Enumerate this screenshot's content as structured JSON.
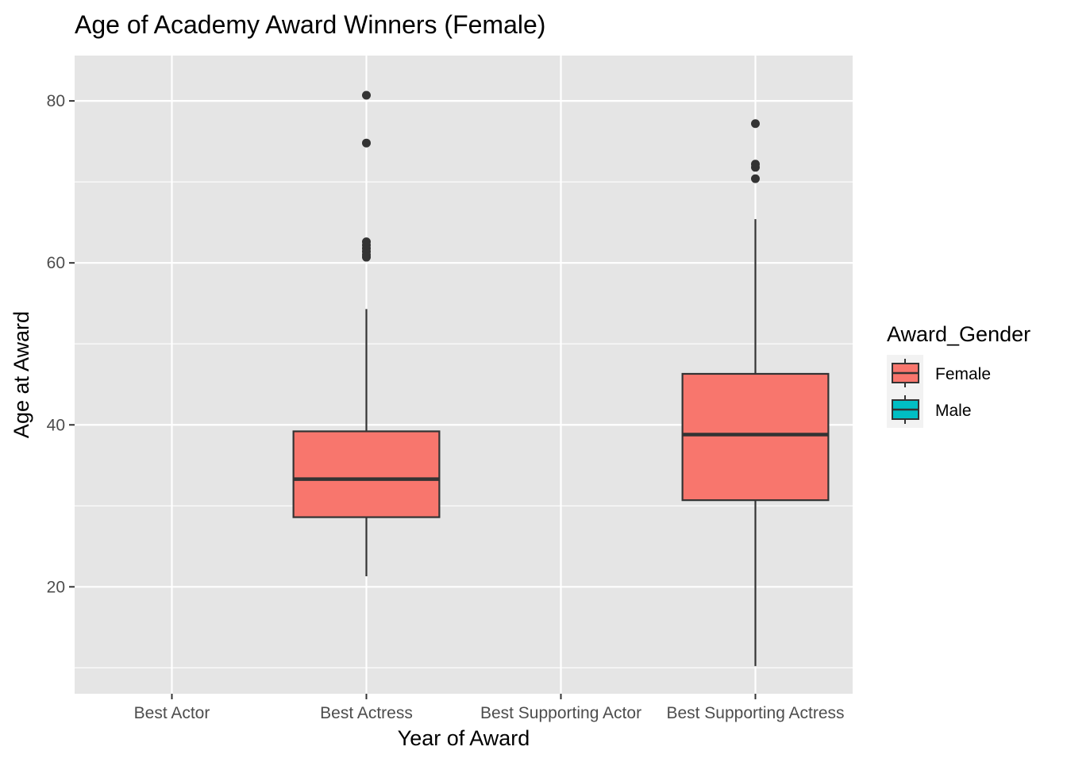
{
  "chart_data": {
    "type": "boxplot",
    "title": "Age of Academy Award Winners (Female)",
    "xlabel": "Year of Award",
    "ylabel": "Age at Award",
    "categories": [
      "Best Actor",
      "Best Actress",
      "Best Supporting Actor",
      "Best Supporting Actress"
    ],
    "ylim": [
      6.8,
      85.6
    ],
    "yticks": [
      20,
      40,
      60,
      80
    ],
    "grid": true,
    "legend": {
      "title": "Award_Gender",
      "position": "right",
      "entries": [
        {
          "label": "Female",
          "color": "#F8766D"
        },
        {
          "label": "Male",
          "color": "#00BFC4"
        }
      ]
    },
    "series": [
      {
        "name": "Female",
        "color": "#F8766D",
        "boxes": [
          {
            "category": "Best Actress",
            "lower_whisker": 21.3,
            "q1": 28.6,
            "median": 33.3,
            "q3": 39.2,
            "upper_whisker": 54.3,
            "outliers": [
              60.7,
              61.0,
              61.4,
              61.8,
              62.2,
              62.6,
              74.8,
              80.7
            ]
          },
          {
            "category": "Best Supporting Actress",
            "lower_whisker": 10.2,
            "q1": 30.7,
            "median": 38.8,
            "q3": 46.3,
            "upper_whisker": 65.4,
            "outliers": [
              70.4,
              71.8,
              72.2,
              77.2
            ]
          }
        ]
      }
    ]
  },
  "colors": {
    "panel": "#E5E5E5",
    "grid": "#FFFFFF",
    "box_fill": "#F8766D",
    "box_stroke": "#333333",
    "male": "#00BFC4"
  }
}
